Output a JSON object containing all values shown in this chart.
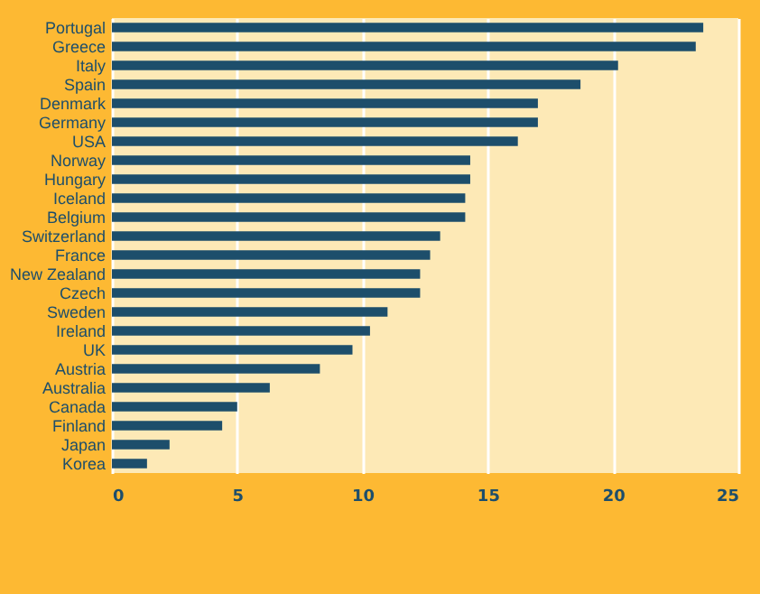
{
  "chart_data": {
    "type": "bar",
    "orientation": "horizontal",
    "categories": [
      "Portugal",
      "Greece",
      "Italy",
      "Spain",
      "Denmark",
      "Germany",
      "USA",
      "Norway",
      "Hungary",
      "Iceland",
      "Belgium",
      "Switzerland",
      "France",
      "New Zealand",
      "Czech",
      "Sweden",
      "Ireland",
      "UK",
      "Austria",
      "Australia",
      "Canada",
      "Finland",
      "Japan",
      "Korea"
    ],
    "values": [
      23.6,
      23.3,
      20.2,
      18.7,
      17.0,
      17.0,
      16.2,
      14.3,
      14.3,
      14.1,
      14.1,
      13.1,
      12.7,
      12.3,
      12.3,
      11.0,
      10.3,
      9.6,
      8.3,
      6.3,
      5.0,
      4.4,
      2.3,
      1.4
    ],
    "color": "#1d4e6b",
    "xlim": [
      0,
      25
    ],
    "xticks": [
      0,
      5,
      10,
      15,
      20,
      25
    ],
    "grid": "x"
  }
}
